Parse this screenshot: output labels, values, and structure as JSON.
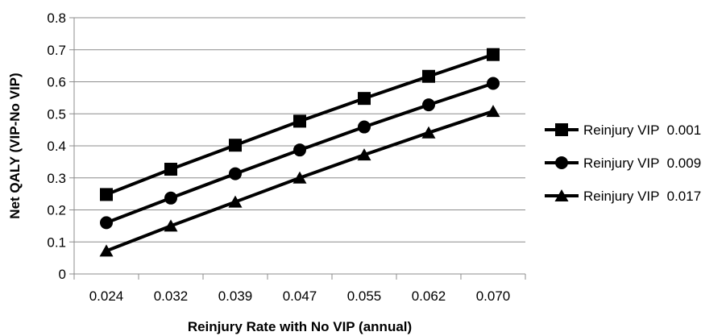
{
  "chart_data": {
    "type": "line",
    "title": "",
    "xlabel": "Reinjury Rate with No VIP (annual)",
    "ylabel": "Net QALY (VIP-No VIP)",
    "categories": [
      "0.024",
      "0.032",
      "0.039",
      "0.047",
      "0.055",
      "0.062",
      "0.070"
    ],
    "ylim": [
      0,
      0.8
    ],
    "yticks": [
      "0",
      "0.1",
      "0.2",
      "0.3",
      "0.4",
      "0.5",
      "0.6",
      "0.7",
      "0.8"
    ],
    "grid": "horizontal",
    "legend_position": "right",
    "series": [
      {
        "name": "Reinjury VIP  0.001",
        "marker": "square",
        "color": "#000000",
        "values": [
          0.248,
          0.327,
          0.402,
          0.477,
          0.548,
          0.617,
          0.685
        ]
      },
      {
        "name": "Reinjury VIP  0.009",
        "marker": "circle",
        "color": "#000000",
        "values": [
          0.16,
          0.237,
          0.313,
          0.387,
          0.459,
          0.528,
          0.595
        ]
      },
      {
        "name": "Reinjury VIP  0.017",
        "marker": "triangle",
        "color": "#000000",
        "values": [
          0.072,
          0.15,
          0.225,
          0.3,
          0.372,
          0.441,
          0.508
        ]
      }
    ]
  }
}
